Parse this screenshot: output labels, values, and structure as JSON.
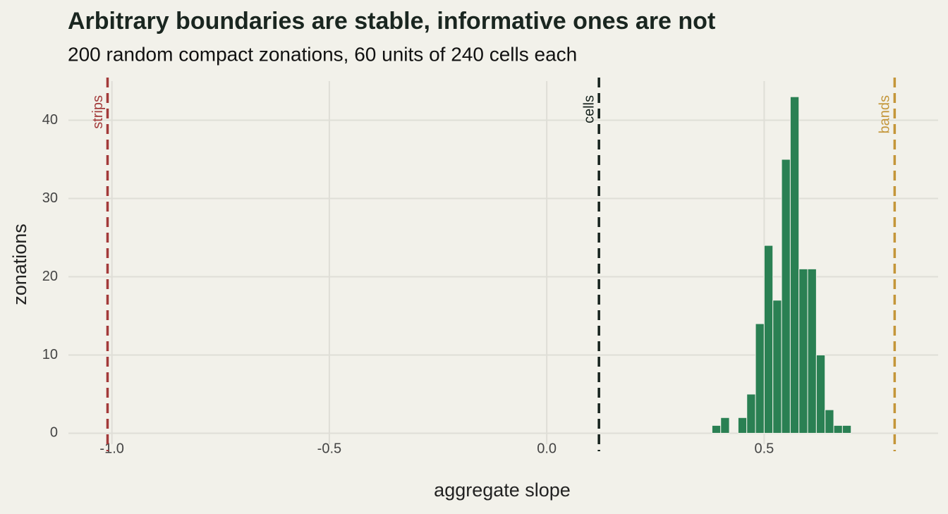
{
  "chart_data": {
    "type": "histogram",
    "title": "Arbitrary boundaries are stable, informative ones are not",
    "subtitle": "200 random compact zonations, 60 units of 240 cells each",
    "x_label": "aggregate slope",
    "y_label": "zonations",
    "bins": [
      0.38,
      0.4,
      0.42,
      0.44,
      0.46,
      0.48,
      0.5,
      0.52,
      0.54,
      0.56,
      0.58,
      0.6,
      0.62,
      0.64,
      0.66,
      0.68,
      0.7
    ],
    "values": [
      1,
      2,
      0,
      2,
      5,
      14,
      24,
      17,
      35,
      43,
      21,
      21,
      10,
      3,
      1,
      1
    ],
    "color": "#2a8053",
    "xlim": [
      -1.1,
      0.9
    ],
    "xticks": [
      {
        "value": -1,
        "label": "-1.0"
      },
      0.5,
      {
        "value": -0.5,
        "label": "-0.5"
      },
      {
        "value": 0,
        "label": "0.0"
      }
    ],
    "ylim": [
      -1.4,
      45
    ],
    "yticks": [
      0,
      10,
      20,
      30,
      40
    ],
    "grid": true,
    "reference_lines": [
      {
        "label": "strips",
        "value": -1.01,
        "color": "#a33a3a"
      },
      {
        "label": "cells",
        "value": 0.12,
        "color": "#15211c"
      },
      {
        "label": "bands",
        "value": 0.8,
        "color": "#c4963a"
      }
    ]
  }
}
